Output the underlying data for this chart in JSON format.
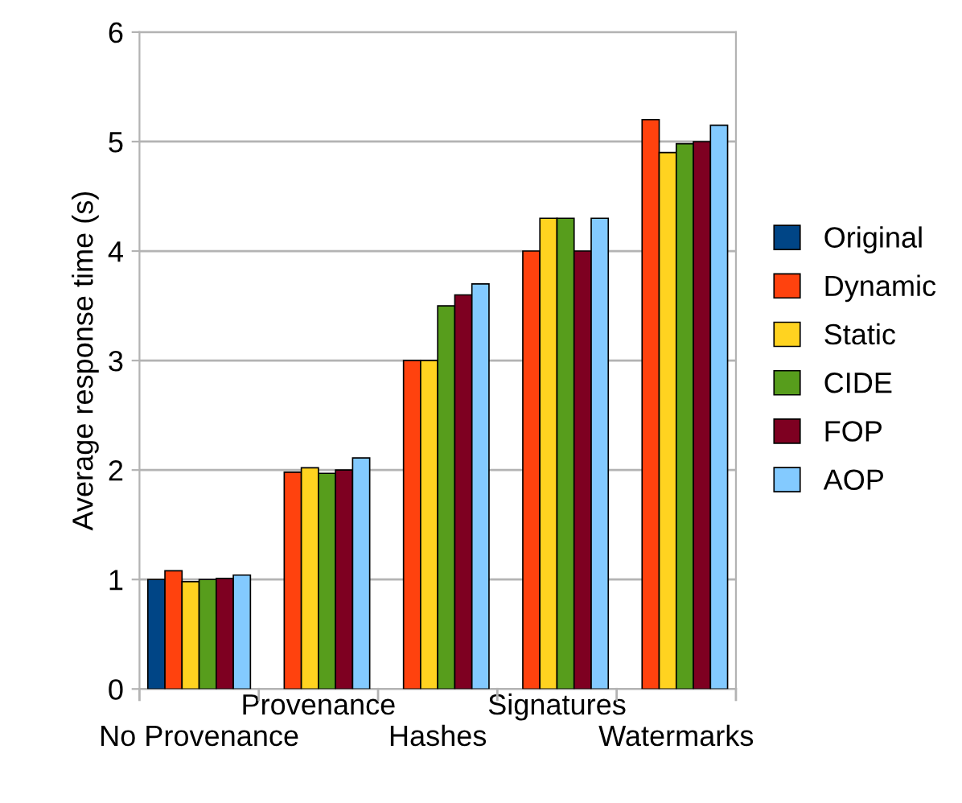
{
  "chart_data": {
    "type": "bar",
    "ylabel": "Average response time (s)",
    "categories": [
      "No Provenance",
      "Provenance",
      "Hashes",
      "Signatures",
      "Watermarks"
    ],
    "series": [
      {
        "name": "Original",
        "color": "#004586",
        "values": [
          1.0,
          null,
          null,
          null,
          null
        ]
      },
      {
        "name": "Dynamic",
        "color": "#ff420e",
        "values": [
          1.08,
          1.98,
          3.0,
          4.0,
          5.2
        ]
      },
      {
        "name": "Static",
        "color": "#ffd320",
        "values": [
          0.98,
          2.02,
          3.0,
          4.3,
          4.9
        ]
      },
      {
        "name": "CIDE",
        "color": "#579d1c",
        "values": [
          1.0,
          1.97,
          3.5,
          4.3,
          4.98
        ]
      },
      {
        "name": "FOP",
        "color": "#7e0021",
        "values": [
          1.01,
          2.0,
          3.6,
          4.0,
          5.0
        ]
      },
      {
        "name": "AOP",
        "color": "#83caff",
        "values": [
          1.04,
          2.11,
          3.7,
          4.3,
          5.15
        ]
      }
    ],
    "ylim": [
      0,
      6
    ],
    "yticks": [
      0,
      1,
      2,
      3,
      4,
      5,
      6
    ],
    "grid": "y",
    "legend": "right"
  }
}
